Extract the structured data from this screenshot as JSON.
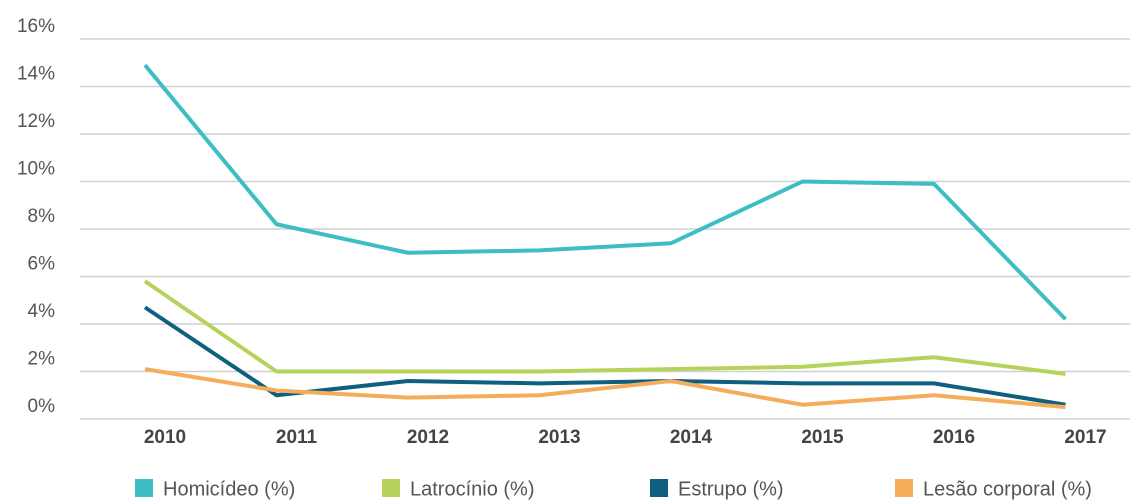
{
  "chart_data": {
    "type": "line",
    "categories": [
      "2010",
      "2011",
      "2012",
      "2013",
      "2014",
      "2015",
      "2016",
      "2017"
    ],
    "series": [
      {
        "name": "Homicídeo (%)",
        "color": "#3dbdc4",
        "values": [
          14.9,
          8.2,
          7.0,
          7.1,
          7.4,
          10.0,
          9.9,
          4.2
        ]
      },
      {
        "name": "Latrocínio (%)",
        "color": "#b5d25a",
        "values": [
          5.8,
          2.0,
          2.0,
          2.0,
          2.1,
          2.2,
          2.6,
          1.9
        ]
      },
      {
        "name": "Estrupo (%)",
        "color": "#0e5f80",
        "values": [
          4.7,
          1.0,
          1.6,
          1.5,
          1.6,
          1.5,
          1.5,
          0.6
        ]
      },
      {
        "name": "Lesão corporal (%)",
        "color": "#f6ad5b",
        "values": [
          2.1,
          1.2,
          0.9,
          1.0,
          1.6,
          0.6,
          1.0,
          0.5
        ]
      }
    ],
    "ylim": [
      0,
      16
    ],
    "yticks": [
      {
        "value": 0,
        "label": "0%"
      },
      {
        "value": 2,
        "label": "2%"
      },
      {
        "value": 4,
        "label": "4%"
      },
      {
        "value": 6,
        "label": "6%"
      },
      {
        "value": 8,
        "label": "8%"
      },
      {
        "value": 10,
        "label": "10%"
      },
      {
        "value": 12,
        "label": "12%"
      },
      {
        "value": 14,
        "label": "14%"
      },
      {
        "value": 16,
        "label": "16%"
      }
    ],
    "grid": true
  }
}
